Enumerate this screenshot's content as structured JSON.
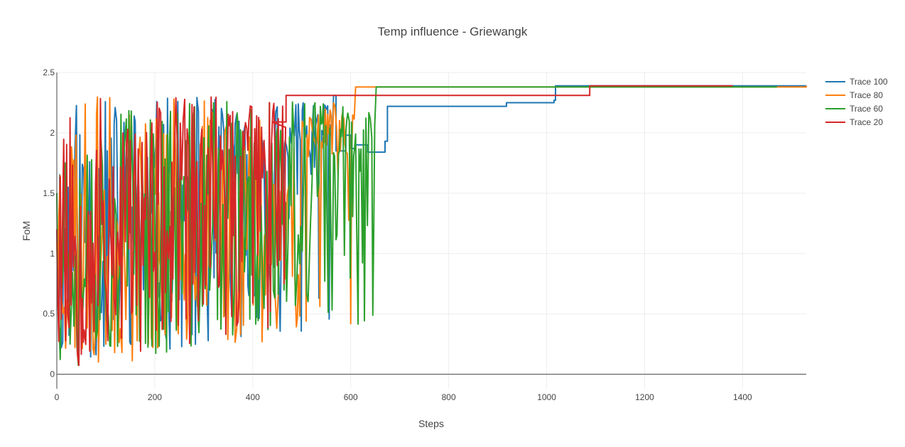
{
  "chart_data": {
    "type": "line",
    "title": "Temp influence - Griewangk",
    "xlabel": "Steps",
    "ylabel": "FoM",
    "xlim": [
      0,
      1530
    ],
    "ylim": [
      -0.12,
      2.5
    ],
    "xticks": [
      0,
      200,
      400,
      600,
      800,
      1000,
      1200,
      1400
    ],
    "yticks": [
      0,
      0.5,
      1,
      1.5,
      2,
      2.5
    ],
    "grid": true,
    "legend_position": "top-right",
    "series": [
      {
        "name": "Trace  100",
        "color": "#1f77b4",
        "noisy_until": 565,
        "noise_seed": 11,
        "points": [
          [
            0,
            1.2
          ],
          [
            565,
            2.31
          ],
          [
            570,
            1.85
          ],
          [
            590,
            1.98
          ],
          [
            600,
            1.87
          ],
          [
            610,
            1.9
          ],
          [
            635,
            1.84
          ],
          [
            665,
            1.84
          ],
          [
            670,
            1.93
          ],
          [
            675,
            2.22
          ],
          [
            915,
            2.22
          ],
          [
            918,
            2.25
          ],
          [
            1015,
            2.27
          ],
          [
            1018,
            2.39
          ],
          [
            1530,
            2.39
          ]
        ]
      },
      {
        "name": "Trace 80",
        "color": "#ff7f0e",
        "noisy_until": 610,
        "noise_seed": 23,
        "points": [
          [
            0,
            1.1
          ],
          [
            610,
            2.38
          ],
          [
            1530,
            2.39
          ]
        ]
      },
      {
        "name": "Trace 60",
        "color": "#2ca02c",
        "noisy_until": 652,
        "noise_seed": 37,
        "points": [
          [
            0,
            1.5
          ],
          [
            652,
            2.38
          ],
          [
            1470,
            2.38
          ]
        ]
      },
      {
        "name": "Trace  20",
        "color": "#d62728",
        "noisy_until": 468,
        "noise_seed": 53,
        "points": [
          [
            0,
            1.2
          ],
          [
            440,
            2.09
          ],
          [
            468,
            2.31
          ],
          [
            1085,
            2.31
          ],
          [
            1088,
            2.39
          ],
          [
            1380,
            2.39
          ]
        ]
      }
    ]
  }
}
